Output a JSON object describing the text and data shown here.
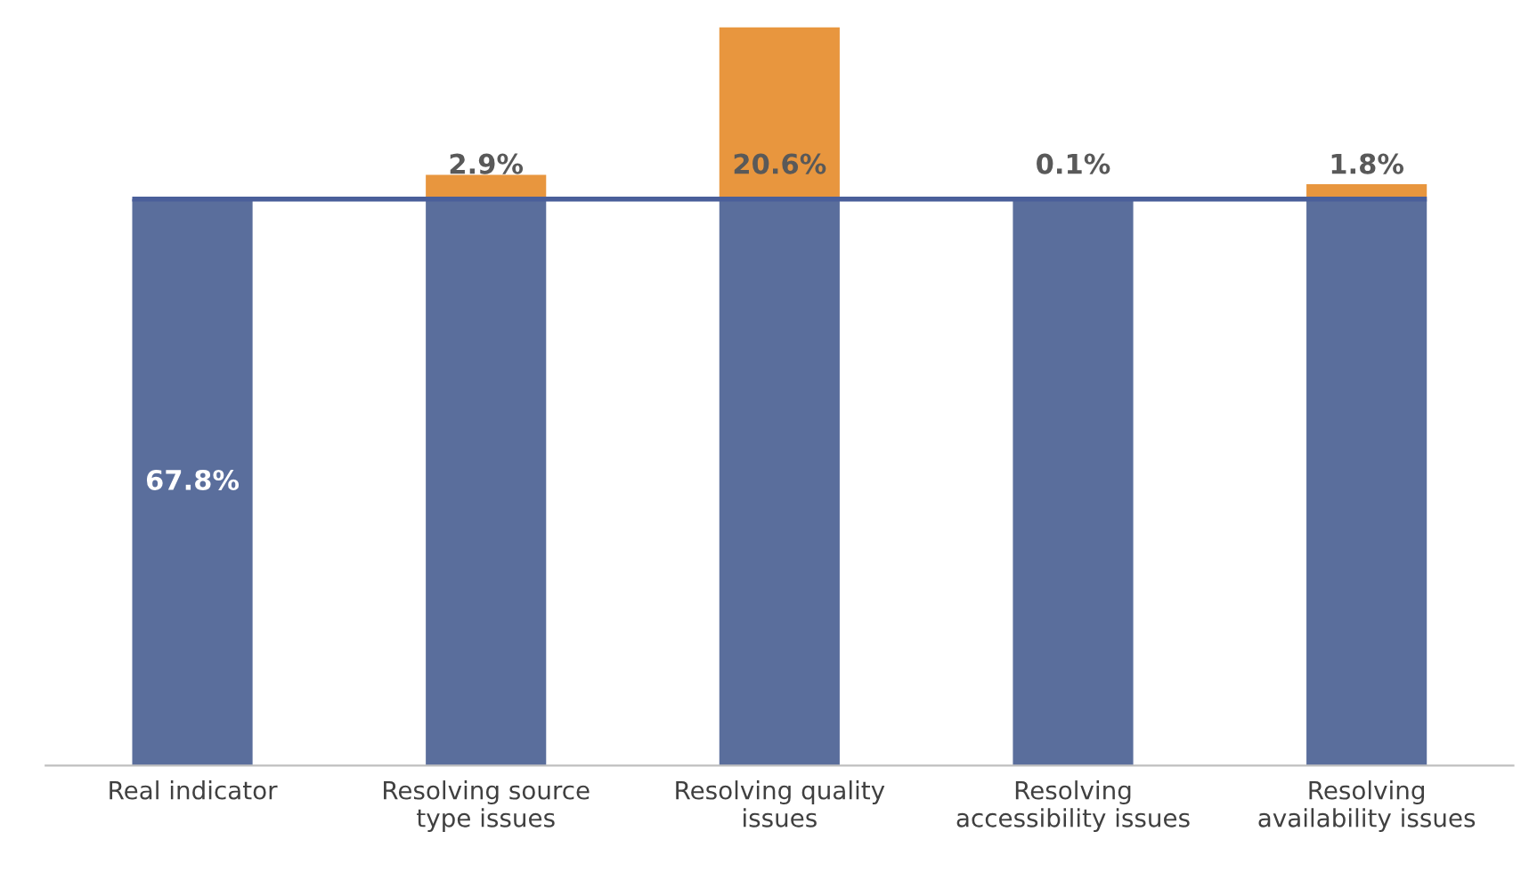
{
  "chart_data": {
    "type": "bar",
    "stacked": true,
    "categories": [
      "Real indicator",
      "Resolving source\ntype issues",
      "Resolving quality\nissues",
      "Resolving\naccessibility issues",
      "Resolving\navailability issues"
    ],
    "series": [
      {
        "color": "#5a6e9c",
        "values": [
          67.8,
          67.8,
          67.8,
          67.8,
          67.8
        ],
        "value_labels": [
          "67.8%",
          null,
          null,
          null,
          null
        ]
      },
      {
        "color": "#e8963e",
        "values": [
          null,
          2.9,
          20.6,
          0.1,
          1.8
        ],
        "value_labels": [
          null,
          "2.9%",
          "20.6%",
          "0.1%",
          "1.8%"
        ]
      }
    ],
    "ref_lines": [
      {
        "axis": "y",
        "value": 67.8,
        "color": "#4a5f9a"
      }
    ],
    "grid": false,
    "legend": false
  }
}
